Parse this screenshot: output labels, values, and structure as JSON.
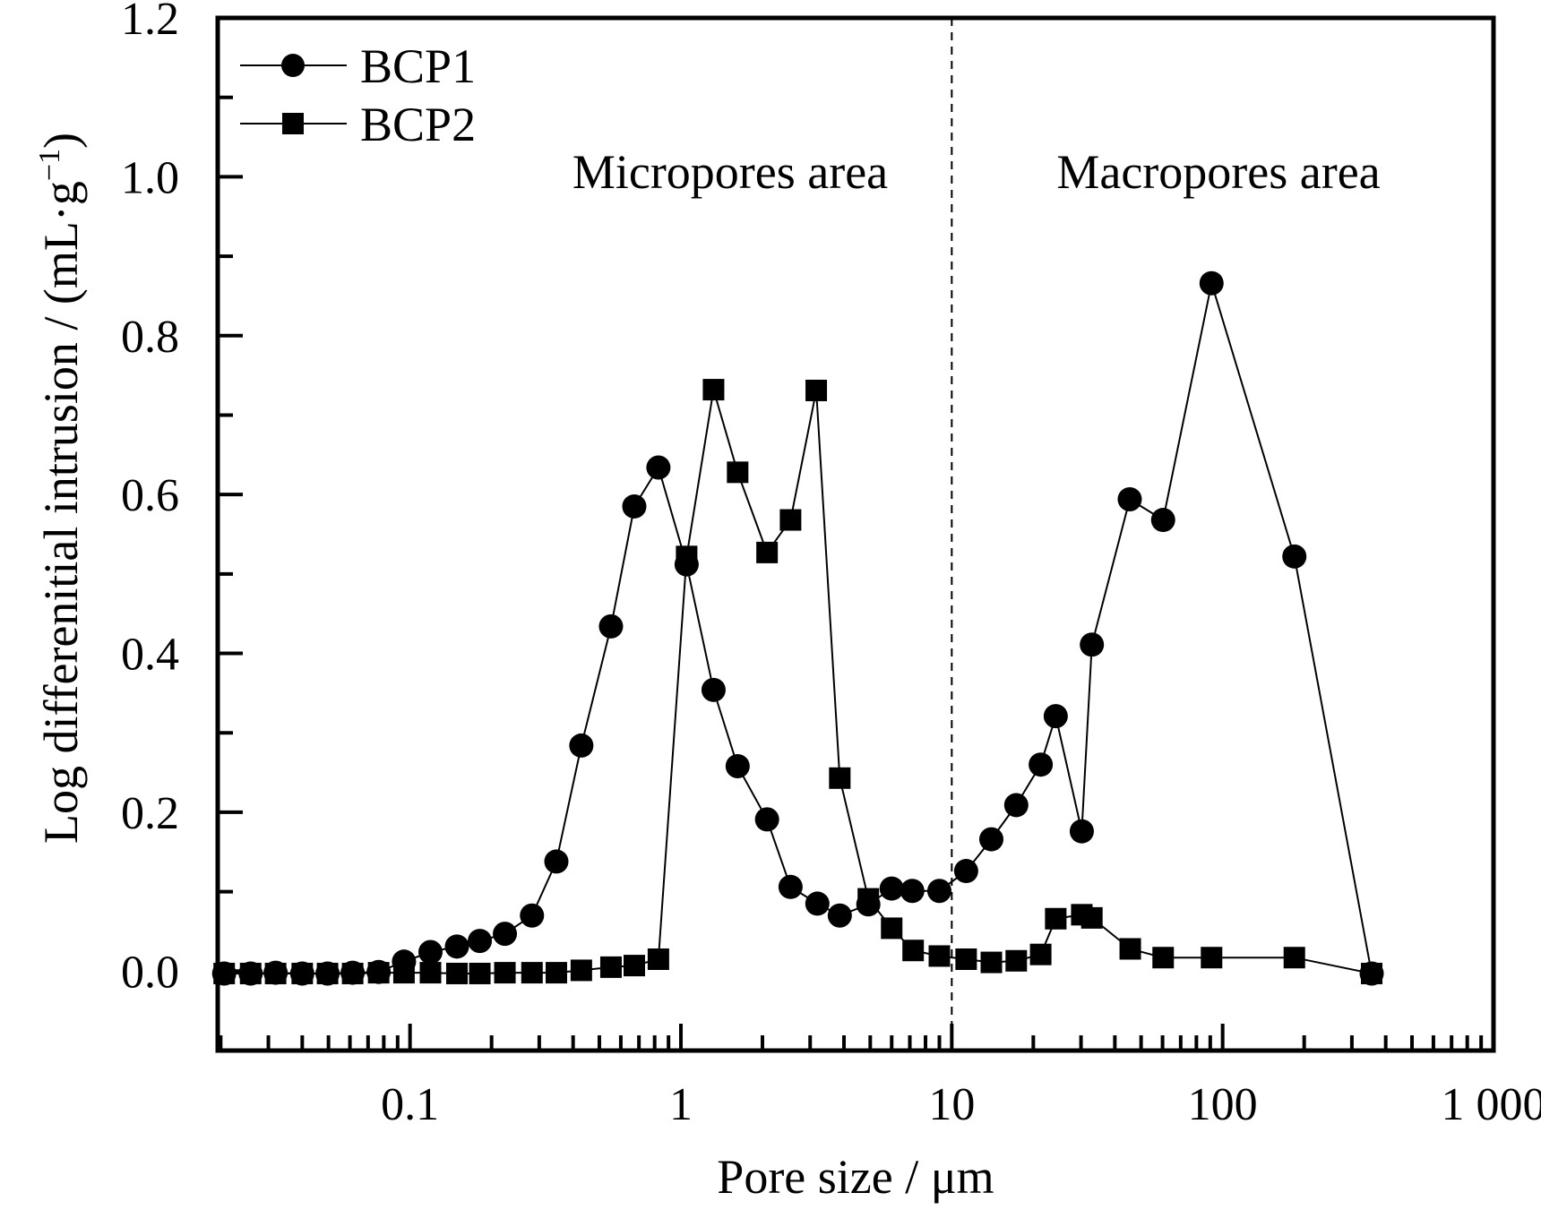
{
  "chart_data": {
    "type": "line",
    "title": "",
    "xlabel": "Pore size / μm",
    "ylabel": "Log differenitial intrusion / (mL·g",
    "ylabel_superscript": "−1",
    "ylabel_suffix": ")",
    "xscale": "log",
    "xlim": [
      0.0195,
      1000
    ],
    "ylim": [
      -0.1,
      1.2
    ],
    "grid": false,
    "x_ticks": [
      0.1,
      1,
      10,
      100,
      1000
    ],
    "x_tick_labels": [
      "0.1",
      "1",
      "10",
      "100",
      "1 000"
    ],
    "y_ticks": [
      0.0,
      0.2,
      0.4,
      0.6,
      0.8,
      1.0,
      1.2
    ],
    "y_tick_labels": [
      "0.0",
      "0.2",
      "0.4",
      "0.6",
      "0.8",
      "1.0",
      "1.2"
    ],
    "y_minor_ticks": [
      -0.1,
      0.1,
      0.3,
      0.5,
      0.7,
      0.9,
      1.1
    ],
    "legend": {
      "placement": "top-left",
      "entries": [
        {
          "name": "BCP1",
          "marker": "circle"
        },
        {
          "name": "BCP2",
          "marker": "square"
        }
      ]
    },
    "annotations": [
      {
        "text": "Micropores area",
        "x_anchor": 1.0,
        "y_anchor": 0.98
      },
      {
        "text": "Macropores area",
        "x_anchor": 100,
        "y_anchor": 0.98
      }
    ],
    "reference_line": {
      "type": "vertical-dashed",
      "x": 10
    },
    "series": [
      {
        "name": "BCP1",
        "marker": "circle",
        "color": "#000000",
        "x": [
          0.0206,
          0.0258,
          0.0319,
          0.04,
          0.0496,
          0.0614,
          0.0766,
          0.095,
          0.119,
          0.149,
          0.181,
          0.224,
          0.282,
          0.347,
          0.429,
          0.552,
          0.673,
          0.826,
          1.05,
          1.32,
          1.62,
          2.08,
          2.54,
          3.19,
          3.86,
          4.92,
          6.0,
          7.15,
          9.0,
          11.3,
          14.0,
          17.3,
          21.3,
          24.2,
          30.2,
          32.9,
          45.4,
          60.3,
          91,
          184,
          355
        ],
        "y": [
          -0.003,
          -0.003,
          -0.002,
          -0.003,
          -0.003,
          -0.002,
          -0.001,
          0.012,
          0.024,
          0.031,
          0.038,
          0.047,
          0.07,
          0.138,
          0.284,
          0.434,
          0.585,
          0.634,
          0.512,
          0.354,
          0.258,
          0.191,
          0.106,
          0.085,
          0.07,
          0.084,
          0.104,
          0.101,
          0.101,
          0.126,
          0.166,
          0.209,
          0.26,
          0.321,
          0.176,
          0.411,
          0.594,
          0.568,
          0.866,
          0.522,
          -0.003
        ]
      },
      {
        "name": "BCP2",
        "marker": "square",
        "color": "#000000",
        "x": [
          0.0206,
          0.0258,
          0.0319,
          0.04,
          0.0496,
          0.0614,
          0.0766,
          0.095,
          0.119,
          0.149,
          0.181,
          0.224,
          0.282,
          0.347,
          0.429,
          0.552,
          0.673,
          0.826,
          1.05,
          1.32,
          1.62,
          2.08,
          2.54,
          3.16,
          3.86,
          4.92,
          6.0,
          7.2,
          9.0,
          11.3,
          14.0,
          17.3,
          21.3,
          24.2,
          30.2,
          32.9,
          45.6,
          60.3,
          91,
          184,
          355
        ],
        "y": [
          -0.003,
          -0.003,
          -0.003,
          -0.003,
          -0.003,
          -0.003,
          -0.002,
          -0.002,
          -0.002,
          -0.003,
          -0.003,
          -0.002,
          -0.002,
          -0.002,
          0.001,
          0.005,
          0.007,
          0.015,
          0.522,
          0.732,
          0.628,
          0.527,
          0.568,
          0.731,
          0.243,
          0.091,
          0.054,
          0.026,
          0.019,
          0.015,
          0.011,
          0.013,
          0.021,
          0.066,
          0.071,
          0.067,
          0.028,
          0.017,
          0.017,
          0.017,
          -0.003
        ]
      }
    ]
  }
}
